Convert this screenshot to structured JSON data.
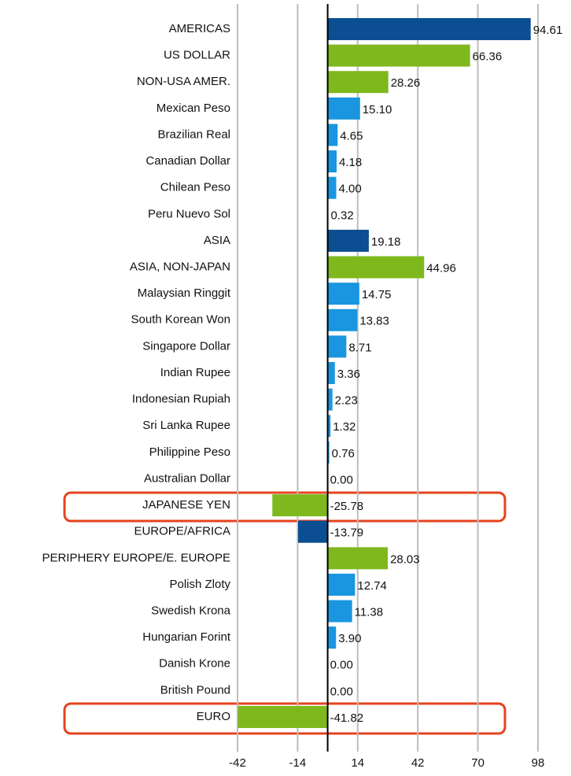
{
  "chart_data": {
    "type": "barh",
    "categories": [
      "AMERICAS",
      "US DOLLAR",
      "NON-USA AMER.",
      "Mexican Peso",
      "Brazilian Real",
      "Canadian Dollar",
      "Chilean Peso",
      "Peru Nuevo Sol",
      "ASIA",
      "ASIA, NON-JAPAN",
      "Malaysian Ringgit",
      "South Korean Won",
      "Singapore Dollar",
      "Indian Rupee",
      "Indonesian Rupiah",
      "Sri Lanka Rupee",
      "Philippine Peso",
      "Australian Dollar",
      "JAPANESE YEN",
      "EUROPE/AFRICA",
      "PERIPHERY EUROPE/E. EUROPE",
      "Polish Zloty",
      "Swedish Krona",
      "Hungarian Forint",
      "Danish Krone",
      "British Pound",
      "EURO"
    ],
    "values": [
      94.61,
      66.36,
      28.26,
      15.1,
      4.65,
      4.18,
      4,
      0.32,
      19.18,
      44.96,
      14.75,
      13.83,
      8.71,
      3.36,
      2.23,
      1.32,
      0.76,
      0,
      -25.78,
      -13.79,
      28.03,
      12.74,
      11.38,
      3.9,
      0,
      0,
      -41.82
    ],
    "value_labels": [
      "94.61",
      "66.36",
      "28.26",
      "15.10",
      "4.65",
      "4.18",
      "4.00",
      "0.32",
      "19.18",
      "44.96",
      "14.75",
      "13.83",
      "8.71",
      "3.36",
      "2.23",
      "1.32",
      "0.76",
      "0.00",
      "-25.78",
      "-13.79",
      "28.03",
      "12.74",
      "11.38",
      "3.90",
      "0.00",
      "0.00",
      "-41.82"
    ],
    "colors": [
      "#0b4f92",
      "#7fb81d",
      "#7fb81d",
      "#1996df",
      "#1996df",
      "#1996df",
      "#1996df",
      "#1996df",
      "#0b4f92",
      "#7fb81d",
      "#1996df",
      "#1996df",
      "#1996df",
      "#1996df",
      "#1996df",
      "#1996df",
      "#1996df",
      "#1996df",
      "#7fb81d",
      "#0b4f92",
      "#7fb81d",
      "#1996df",
      "#1996df",
      "#1996df",
      "#1996df",
      "#1996df",
      "#7fb81d"
    ],
    "xlim": [
      -42,
      98
    ],
    "xticks": [
      -42,
      -14,
      14,
      42,
      70,
      98
    ],
    "grid": true
  }
}
